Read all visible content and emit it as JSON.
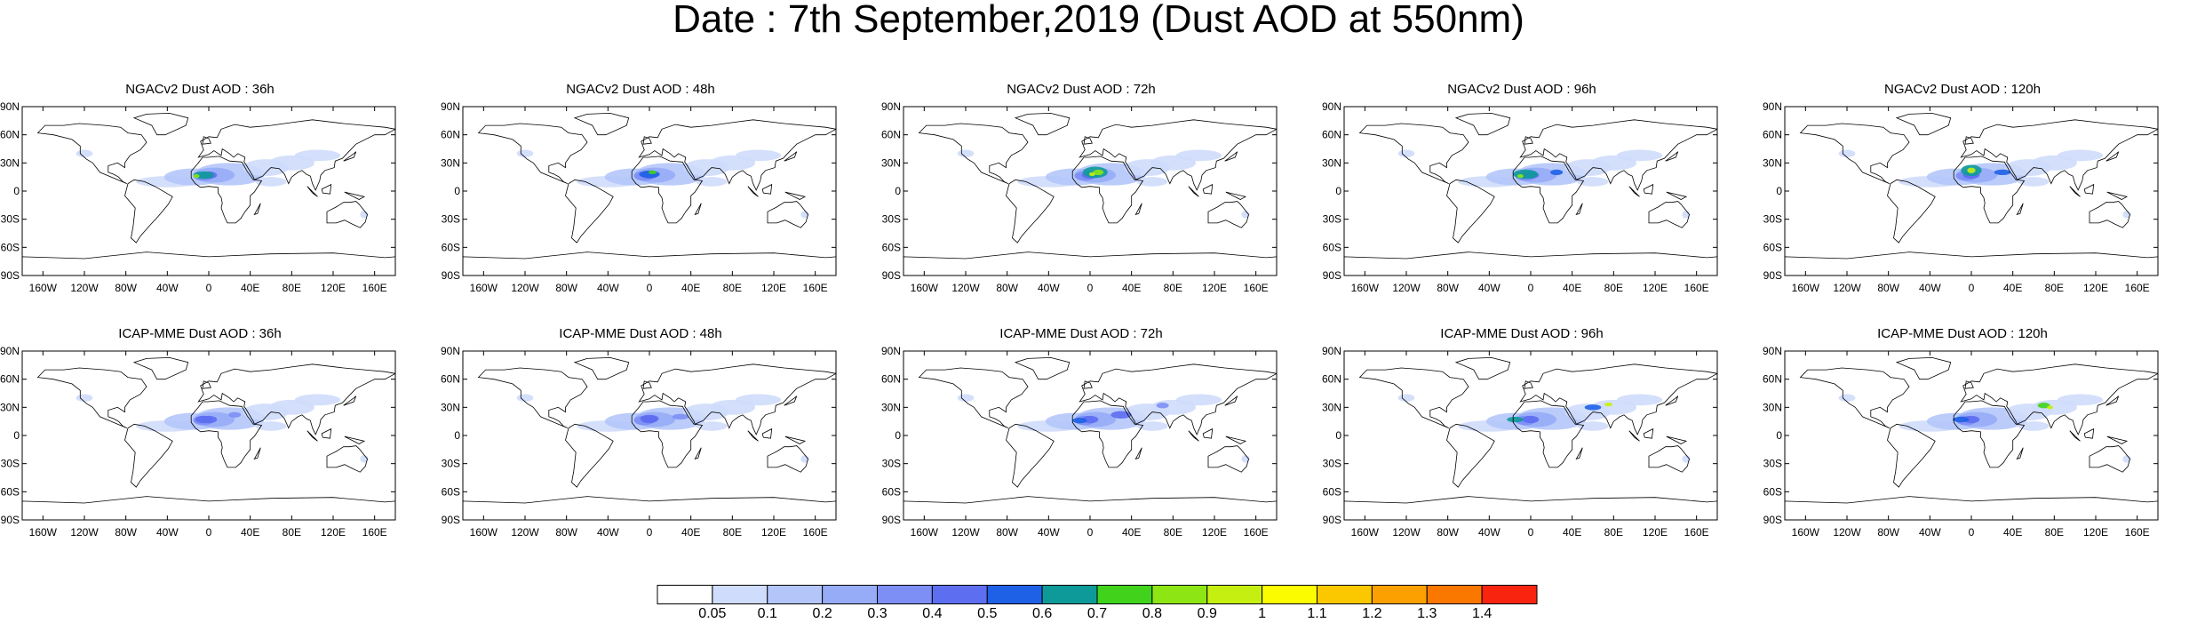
{
  "figure": {
    "title": "Date : 7th September,2019 (Dust AOD at 550nm)"
  },
  "axes": {
    "lat_labels": [
      "90N",
      "60N",
      "30N",
      "0",
      "30S",
      "60S",
      "90S"
    ],
    "lon_labels": [
      "160W",
      "120W",
      "80W",
      "40W",
      "0",
      "40E",
      "80E",
      "120E",
      "160E"
    ]
  },
  "panels": [
    {
      "title": "NGACv2 Dust AOD : 36h",
      "model": "NGACv2",
      "lead": "36h"
    },
    {
      "title": "NGACv2 Dust AOD : 48h",
      "model": "NGACv2",
      "lead": "48h"
    },
    {
      "title": "NGACv2 Dust AOD : 72h",
      "model": "NGACv2",
      "lead": "72h"
    },
    {
      "title": "NGACv2 Dust AOD : 96h",
      "model": "NGACv2",
      "lead": "96h"
    },
    {
      "title": "NGACv2 Dust AOD : 120h",
      "model": "NGACv2",
      "lead": "120h"
    },
    {
      "title": "ICAP-MME Dust AOD : 36h",
      "model": "ICAP-MME",
      "lead": "36h"
    },
    {
      "title": "ICAP-MME Dust AOD : 48h",
      "model": "ICAP-MME",
      "lead": "48h"
    },
    {
      "title": "ICAP-MME Dust AOD : 72h",
      "model": "ICAP-MME",
      "lead": "72h"
    },
    {
      "title": "ICAP-MME Dust AOD : 96h",
      "model": "ICAP-MME",
      "lead": "96h"
    },
    {
      "title": "ICAP-MME Dust AOD : 120h",
      "model": "ICAP-MME",
      "lead": "120h"
    }
  ],
  "colorbar": {
    "labels": [
      "0.05",
      "0.1",
      "0.2",
      "0.3",
      "0.4",
      "0.5",
      "0.6",
      "0.7",
      "0.8",
      "0.9",
      "1",
      "1.1",
      "1.2",
      "1.3",
      "1.4"
    ],
    "colors": [
      "#ffffff",
      "#cfdcfb",
      "#b4c6f9",
      "#97acf7",
      "#7d8ff5",
      "#5e6ef1",
      "#1e61e6",
      "#0e9a99",
      "#41d31b",
      "#8de614",
      "#c5ef10",
      "#fcfc00",
      "#fbc800",
      "#fba000",
      "#fb7800",
      "#f82410"
    ]
  }
}
